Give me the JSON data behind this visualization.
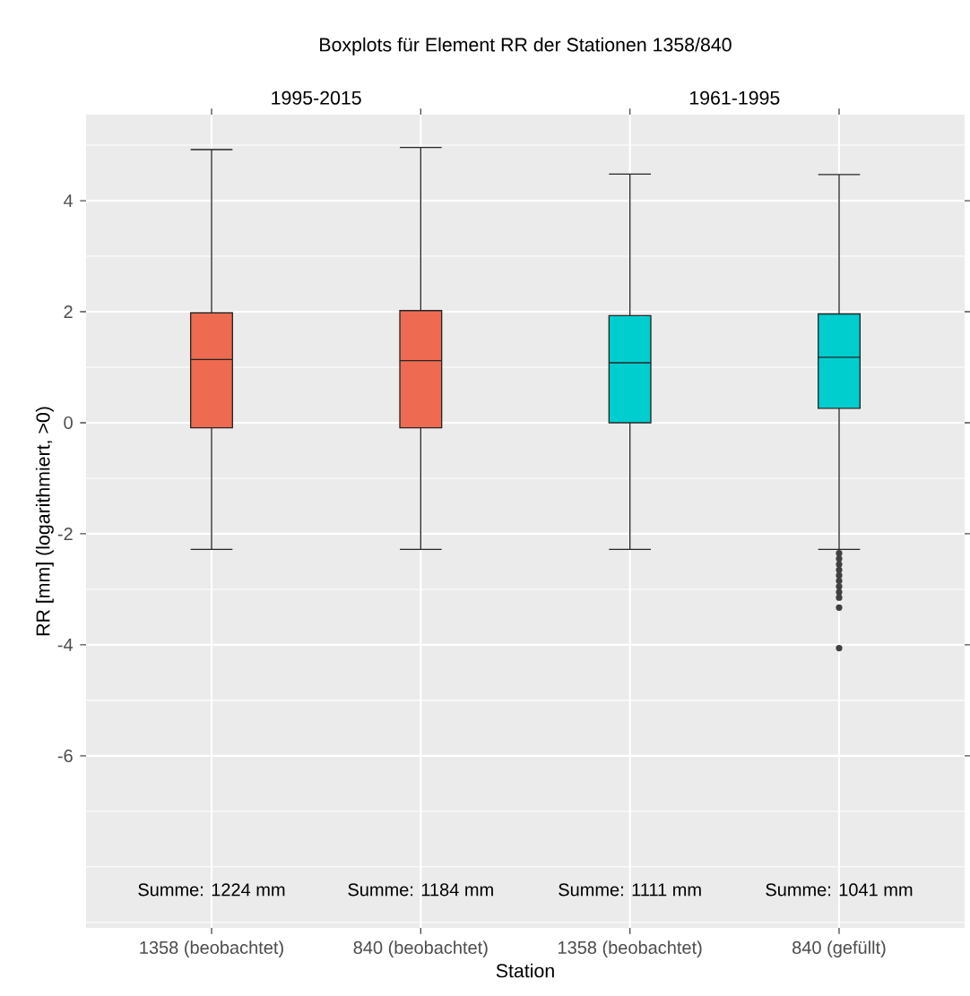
{
  "chart_data": {
    "type": "box",
    "title": "Boxplots für Element RR der Stationen 1358/840",
    "xlabel": "Station",
    "ylabel": "RR [mm] (logarithmiert, >0)",
    "categories": [
      "1358 (beobachtet)",
      "840 (beobachtet)",
      "1358 (beobachtet)",
      "840 (gefüllt)"
    ],
    "colors": [
      "#ee6a50",
      "#ee6a50",
      "#00cdcd",
      "#00cdcd"
    ],
    "boxes": [
      {
        "low": -2.28,
        "q1": -0.09,
        "median": 1.14,
        "q3": 1.98,
        "high": 4.92
      },
      {
        "low": -2.28,
        "q1": -0.09,
        "median": 1.12,
        "q3": 2.02,
        "high": 4.96
      },
      {
        "low": -2.28,
        "q1": 0.0,
        "median": 1.08,
        "q3": 1.93,
        "high": 4.48
      },
      {
        "low": -2.28,
        "q1": 0.26,
        "median": 1.18,
        "q3": 1.96,
        "high": 4.47,
        "outliers": [
          -2.35,
          -2.45,
          -2.55,
          -2.65,
          -2.75,
          -2.85,
          -2.95,
          -3.05,
          -3.15,
          -3.33,
          -4.06
        ]
      }
    ],
    "ylim": [
      -9.1,
      5.55
    ],
    "yticks": [
      -6,
      -4,
      -2,
      0,
      2,
      4
    ],
    "grid": true,
    "annotations": [
      "1995-2015",
      "1961-1995",
      "Summe: 1224 mm",
      "Summe: 1184 mm",
      "Summe: 1111 mm",
      "Summe: 1041 mm"
    ]
  }
}
